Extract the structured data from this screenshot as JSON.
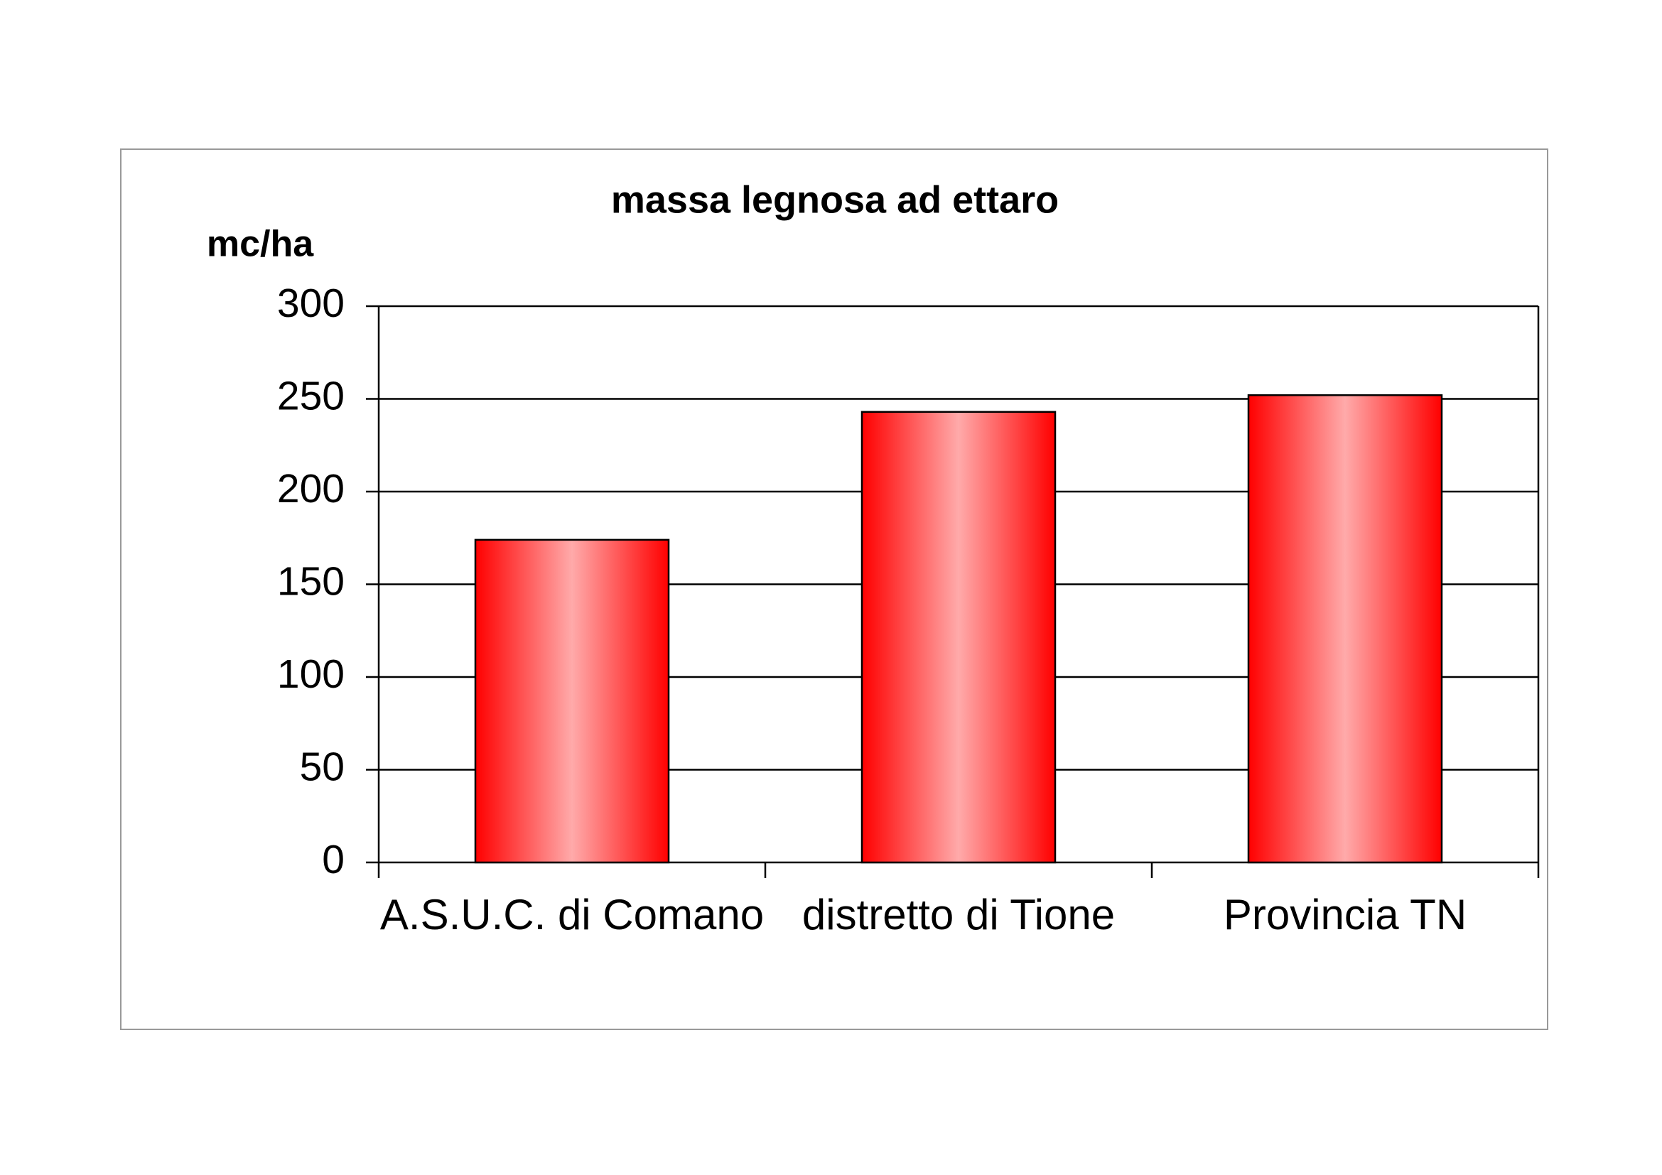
{
  "chart_data": {
    "type": "bar",
    "title": "massa legnosa ad ettaro",
    "y_label": "mc/ha",
    "categories": [
      "A.S.U.C. di Comano",
      "distretto di Tione",
      "Provincia TN"
    ],
    "values": [
      174,
      243,
      252
    ],
    "color": "#ff0000",
    "ylim": [
      0,
      300
    ],
    "yticks": [
      0,
      50,
      100,
      150,
      200,
      250,
      300
    ],
    "grid": true
  }
}
